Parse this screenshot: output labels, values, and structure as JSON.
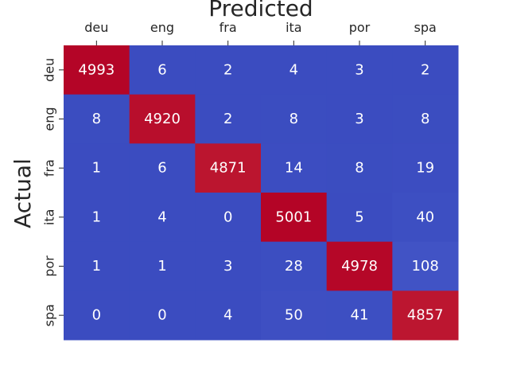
{
  "chart_data": {
    "type": "heatmap",
    "title": "",
    "xlabel": "Predicted",
    "ylabel": "Actual",
    "x_categories": [
      "deu",
      "eng",
      "fra",
      "ita",
      "por",
      "spa"
    ],
    "y_categories": [
      "deu",
      "eng",
      "fra",
      "ita",
      "por",
      "spa"
    ],
    "values": [
      [
        4993,
        6,
        2,
        4,
        3,
        2
      ],
      [
        8,
        4920,
        2,
        8,
        3,
        8
      ],
      [
        1,
        6,
        4871,
        14,
        8,
        19
      ],
      [
        1,
        4,
        0,
        5001,
        5,
        40
      ],
      [
        1,
        1,
        3,
        28,
        4978,
        108
      ],
      [
        0,
        0,
        4,
        50,
        41,
        4857
      ]
    ],
    "colormap": [
      "#3b4cc0",
      "#b40426"
    ],
    "colorbar": false,
    "x_axis_position": "top"
  }
}
